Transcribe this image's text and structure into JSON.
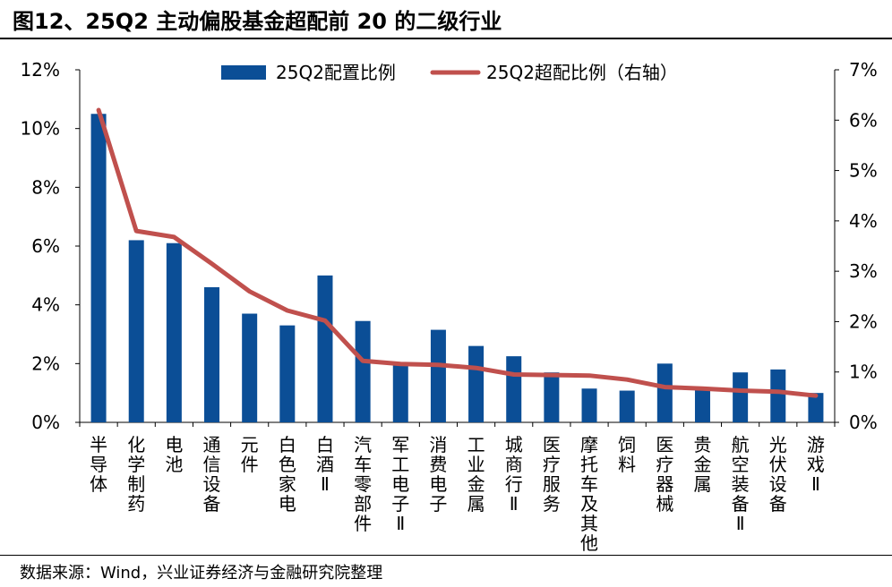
{
  "header": {
    "title": "图12、25Q2 主动偏股基金超配前 20 的二级行业"
  },
  "footer": {
    "source": "数据来源：Wind，兴业证券经济与金融研究院整理"
  },
  "chart_data": {
    "type": "bar",
    "categories": [
      "半导体",
      "化学制药",
      "电池",
      "通信设备",
      "元件",
      "白色家电",
      "白酒Ⅱ",
      "汽车零部件",
      "军工电子Ⅱ",
      "消费电子",
      "工业金属",
      "城商行Ⅱ",
      "医疗服务",
      "摩托车及其他",
      "饲料",
      "医疗器械",
      "贵金属",
      "航空装备Ⅱ",
      "光伏设备",
      "游戏Ⅱ"
    ],
    "series": [
      {
        "name": "25Q2配置比例",
        "type": "bar",
        "axis": "left",
        "color": "#0b4e96",
        "values": [
          10.5,
          6.2,
          6.1,
          4.6,
          3.7,
          3.3,
          5.0,
          3.45,
          2.0,
          3.15,
          2.6,
          2.25,
          1.7,
          1.15,
          1.08,
          2.0,
          1.15,
          1.7,
          1.8,
          1.0
        ]
      },
      {
        "name": "25Q2超配比例（右轴）",
        "type": "line",
        "axis": "right",
        "color": "#c0504d",
        "values": [
          6.2,
          3.8,
          3.68,
          3.15,
          2.6,
          2.22,
          2.02,
          1.22,
          1.16,
          1.14,
          1.08,
          0.95,
          0.94,
          0.93,
          0.85,
          0.7,
          0.67,
          0.63,
          0.61,
          0.53
        ]
      }
    ],
    "yAxisLeft": {
      "min": 0,
      "max": 12,
      "step": 2,
      "format": "%"
    },
    "yAxisRight": {
      "min": 0,
      "max": 7,
      "step": 1,
      "format": "%"
    },
    "legend": "top-center",
    "grid": false
  }
}
